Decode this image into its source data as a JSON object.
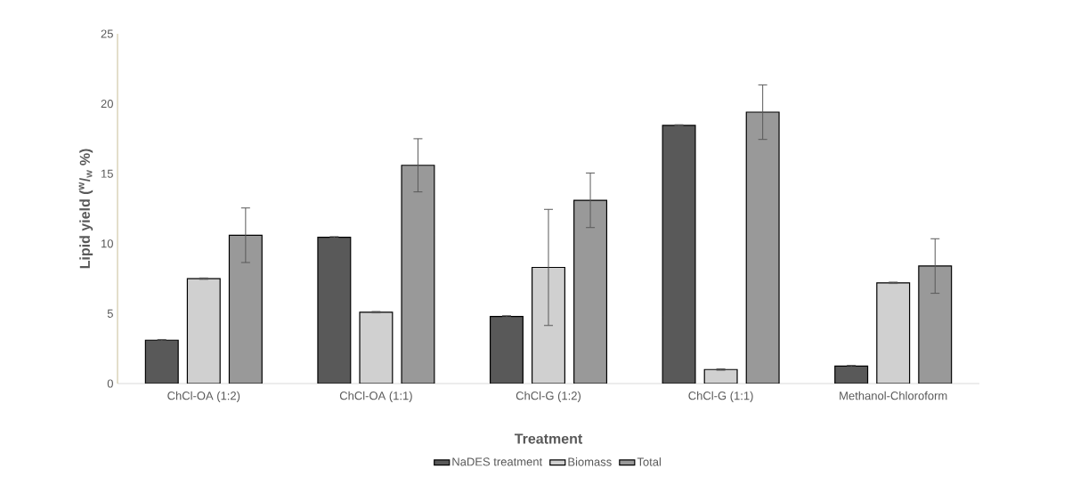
{
  "chart_data": {
    "type": "bar",
    "xlabel": "Treatment",
    "ylabel": "Lipid yield ($^{w}$/$_{w}$ %)",
    "categories": [
      "ChCl-OA (1:2)",
      "ChCl-OA (1:1)",
      "ChCl-G (1:2)",
      "ChCl-G (1:1)",
      "Methanol-Chloroform"
    ],
    "series": [
      {
        "name": "NaDES treatment",
        "color": "#595959",
        "values": [
          3.1,
          10.45,
          4.8,
          18.45,
          1.25
        ],
        "errors": [
          0.05,
          0.05,
          0.05,
          0.05,
          0.05
        ]
      },
      {
        "name": "Biomass",
        "color": "#d0d0d0",
        "values": [
          7.5,
          5.1,
          8.3,
          1.0,
          7.2
        ],
        "errors": [
          0.05,
          0.05,
          4.15,
          0.05,
          0.05
        ]
      },
      {
        "name": "Total",
        "color": "#999999",
        "values": [
          10.6,
          15.6,
          13.1,
          19.4,
          8.4
        ],
        "errors": [
          1.95,
          1.9,
          1.95,
          1.95,
          1.95
        ]
      }
    ],
    "ylim": [
      0,
      25
    ],
    "yticks": [
      0,
      5,
      10,
      15,
      20,
      25
    ],
    "grid": false,
    "legend": "bottom"
  }
}
